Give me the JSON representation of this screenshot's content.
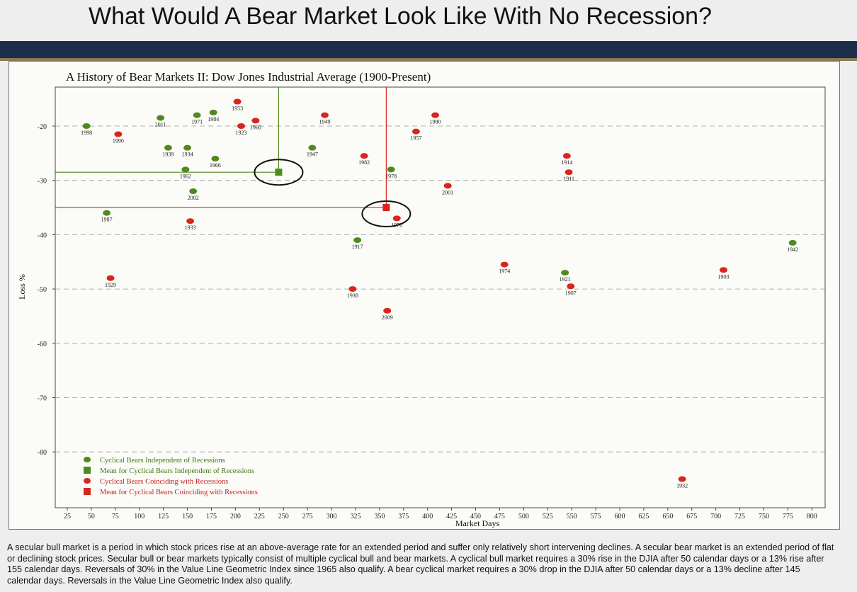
{
  "slide": {
    "title": "What Would A Bear Market Look Like With No Recession?",
    "caption": "A secular bull market is a period in which stock prices rise at an above-average rate for an extended period and suffer only relatively short intervening declines. A secular bear market is an extended period of flat or declining stock prices. Secular bull or bear markets typically consist of multiple cyclical bull and bear markets. A cyclical bull market requires a 30% rise in the DJIA after 50 calendar days or a 13% rise after 155 calendar days. Reversals of 30% in the Value Line Geometric Index since 1965 also qualify. A bear cyclical market requires a 30% drop in the DJIA after 50 calendar days or a 13% decline after 145 calendar days. Reversals in the Value Line Geometric Index also qualify."
  },
  "chart_data": {
    "type": "scatter",
    "title": "A History of Bear Markets II: Dow Jones Industrial Average (1900-Present)",
    "xlabel": "Market Days",
    "ylabel": "Loss %",
    "xlim": [
      20,
      800
    ],
    "ylim": [
      -86,
      -15
    ],
    "xticks": [
      25,
      50,
      75,
      100,
      125,
      150,
      175,
      200,
      225,
      250,
      275,
      300,
      325,
      350,
      375,
      400,
      425,
      450,
      475,
      500,
      525,
      550,
      575,
      600,
      625,
      650,
      675,
      700,
      725,
      750,
      775,
      800
    ],
    "yticks": [
      -20,
      -30,
      -40,
      -50,
      -60,
      -70,
      -80
    ],
    "grid": "dashed horizontal",
    "legend_position": "bottom-left",
    "colors": {
      "independent": "#4e8a1e",
      "recession": "#d8261c"
    },
    "legend": [
      {
        "label": "Cyclical Bears Independent of Recessions",
        "marker": "circle",
        "color": "#4e8a1e"
      },
      {
        "label": "Mean for Cyclical Bears Independent of Recessions",
        "marker": "square",
        "color": "#4e8a1e"
      },
      {
        "label": "Cyclical Bears Coinciding with Recessions",
        "marker": "circle",
        "color": "#d8261c"
      },
      {
        "label": "Mean for Cyclical Bears Coinciding with Recessions",
        "marker": "square",
        "color": "#d8261c"
      }
    ],
    "series": [
      {
        "name": "Cyclical Bears Independent of Recessions",
        "points": [
          {
            "label": "1998",
            "x": 45,
            "y": -20
          },
          {
            "label": "2011",
            "x": 122,
            "y": -18.5
          },
          {
            "label": "1971",
            "x": 160,
            "y": -18
          },
          {
            "label": "1984",
            "x": 177,
            "y": -17.5
          },
          {
            "label": "1939",
            "x": 130,
            "y": -24
          },
          {
            "label": "1934",
            "x": 150,
            "y": -24
          },
          {
            "label": "1966",
            "x": 179,
            "y": -26
          },
          {
            "label": "1962",
            "x": 148,
            "y": -28
          },
          {
            "label": "2002",
            "x": 156,
            "y": -32
          },
          {
            "label": "1947",
            "x": 280,
            "y": -24
          },
          {
            "label": "1978",
            "x": 362,
            "y": -28
          },
          {
            "label": "1987",
            "x": 66,
            "y": -36
          },
          {
            "label": "1917",
            "x": 327,
            "y": -41
          },
          {
            "label": "1921",
            "x": 543,
            "y": -47
          },
          {
            "label": "1942",
            "x": 780,
            "y": -41.5
          }
        ]
      },
      {
        "name": "Cyclical Bears Coinciding with Recessions",
        "points": [
          {
            "label": "1953",
            "x": 202,
            "y": -15.5
          },
          {
            "label": "1960",
            "x": 221,
            "y": -19
          },
          {
            "label": "1923",
            "x": 206,
            "y": -20
          },
          {
            "label": "1949",
            "x": 293,
            "y": -18
          },
          {
            "label": "1980",
            "x": 408,
            "y": -18
          },
          {
            "label": "1957",
            "x": 388,
            "y": -21
          },
          {
            "label": "1990",
            "x": 78,
            "y": -21.5
          },
          {
            "label": "1982",
            "x": 334,
            "y": -25.5
          },
          {
            "label": "1914",
            "x": 545,
            "y": -25.5
          },
          {
            "label": "1911",
            "x": 547,
            "y": -28.5
          },
          {
            "label": "2001",
            "x": 421,
            "y": -31
          },
          {
            "label": "1970",
            "x": 368,
            "y": -37
          },
          {
            "label": "1933",
            "x": 153,
            "y": -37.5
          },
          {
            "label": "1929",
            "x": 70,
            "y": -48
          },
          {
            "label": "1974",
            "x": 480,
            "y": -45.5
          },
          {
            "label": "1903",
            "x": 708,
            "y": -46.5
          },
          {
            "label": "1907",
            "x": 549,
            "y": -49.5
          },
          {
            "label": "1938",
            "x": 322,
            "y": -50
          },
          {
            "label": "2009",
            "x": 358,
            "y": -54
          },
          {
            "label": "1932",
            "x": 665,
            "y": -85
          }
        ]
      }
    ],
    "means": [
      {
        "name": "Mean for Cyclical Bears Independent of Recessions",
        "x": 245,
        "y": -28.5
      },
      {
        "name": "Mean for Cyclical Bears Coinciding with Recessions",
        "x": 357,
        "y": -35
      }
    ]
  }
}
